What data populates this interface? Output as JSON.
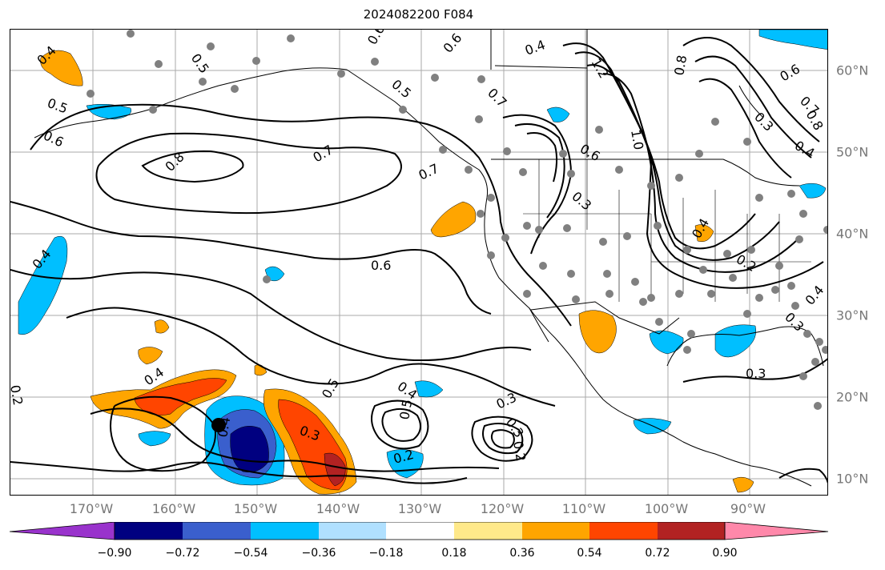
{
  "title": "2024082200 F084",
  "lon_labels": [
    "170°W",
    "160°W",
    "150°W",
    "140°W",
    "130°W",
    "120°W",
    "110°W",
    "100°W",
    "90°W"
  ],
  "lat_labels": [
    "60°N",
    "50°N",
    "40°N",
    "30°N",
    "20°N",
    "10°N"
  ],
  "colorbar": {
    "tick_labels": [
      "−0.90",
      "−0.72",
      "−0.54",
      "−0.36",
      "−0.18",
      "0.18",
      "0.36",
      "0.54",
      "0.72",
      "0.90"
    ],
    "colors": [
      "#9933cc",
      "#000080",
      "#3a5fcd",
      "#00bfff",
      "#b0e0ff",
      "#ffffff",
      "#ffe98a",
      "#ffa500",
      "#ff4500",
      "#b22222",
      "#ff88aa"
    ]
  },
  "contour_labels": [
    "0.4",
    "0.5",
    "0.5",
    "0.6",
    "0.6",
    "0.8",
    "0.7",
    "0.7",
    "0.6",
    "0.5",
    "0.6",
    "0.4",
    "0.7",
    "0.6",
    "0.3",
    "1.0",
    "1.2",
    "0.8",
    "0.6",
    "0.7",
    "0.3",
    "0.4",
    "0.8",
    "0.4",
    "0.2",
    "0.3",
    "0.4",
    "0.3",
    "0.4",
    "0.4",
    "0.3",
    "0.5",
    "0.4",
    "0.5",
    "0.2",
    "0.3",
    "0.3",
    "0.2",
    "0.2",
    "0.4"
  ],
  "fill_colors": {
    "blue": "#00bfff",
    "darkblue": "#000080",
    "midblue": "#3a5fcd",
    "orange": "#ffa500",
    "red": "#ff4500",
    "darkred": "#b22222",
    "grey_dot": "#808080"
  }
}
